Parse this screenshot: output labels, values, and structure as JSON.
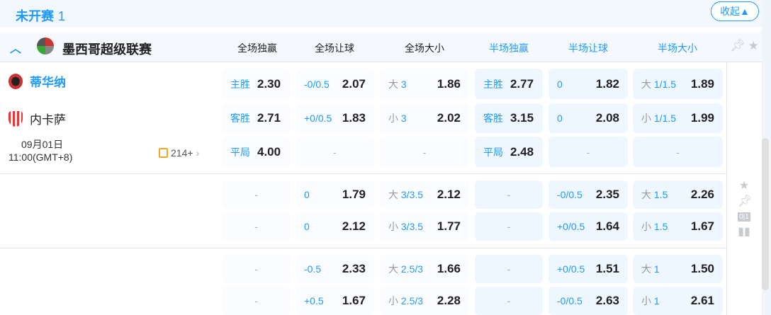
{
  "section": {
    "title": "未开赛",
    "count": "1",
    "collapse_label": "收起▲"
  },
  "league": {
    "name": "墨西哥超级联赛",
    "columns": [
      "全场独赢",
      "全场让球",
      "全场大小",
      "半场独赢",
      "半场让球",
      "半场大小"
    ]
  },
  "match": {
    "home": "蒂华纳",
    "away": "内卡萨",
    "date": "09月01日",
    "time": "11:00(GMT+8)",
    "markets_count": "214+"
  },
  "rows": [
    [
      [
        "主胜",
        "",
        "2.30"
      ],
      [
        "-0/0.5",
        "",
        "2.07"
      ],
      [
        "大",
        "3",
        "1.86"
      ],
      [
        "主胜",
        "",
        "2.77"
      ],
      [
        "0",
        "",
        "1.82"
      ],
      [
        "大",
        "1/1.5",
        "1.89"
      ]
    ],
    [
      [
        "客胜",
        "",
        "2.71"
      ],
      [
        "+0/0.5",
        "",
        "1.83"
      ],
      [
        "小",
        "3",
        "2.02"
      ],
      [
        "客胜",
        "",
        "3.15"
      ],
      [
        "0",
        "",
        "2.08"
      ],
      [
        "小",
        "1/1.5",
        "1.99"
      ]
    ],
    [
      [
        "平局",
        "",
        "4.00"
      ],
      null,
      null,
      [
        "平局",
        "",
        "2.48"
      ],
      null,
      null
    ],
    [
      null,
      [
        "0",
        "",
        "1.79"
      ],
      [
        "大",
        "3/3.5",
        "2.12"
      ],
      null,
      [
        "-0/0.5",
        "",
        "2.35"
      ],
      [
        "大",
        "1.5",
        "2.26"
      ]
    ],
    [
      null,
      [
        "0",
        "",
        "2.12"
      ],
      [
        "小",
        "3/3.5",
        "1.77"
      ],
      null,
      [
        "+0/0.5",
        "",
        "1.64"
      ],
      [
        "小",
        "1.5",
        "1.67"
      ]
    ],
    [
      null,
      [
        "-0.5",
        "",
        "2.33"
      ],
      [
        "大",
        "2.5/3",
        "1.66"
      ],
      null,
      [
        "+0/0.5",
        "",
        "1.51"
      ],
      [
        "大",
        "1",
        "1.50"
      ]
    ],
    [
      null,
      [
        "+0.5",
        "",
        "1.67"
      ],
      [
        "小",
        "2.5/3",
        "2.28"
      ],
      null,
      [
        "-0/0.5",
        "",
        "2.63"
      ],
      [
        "小",
        "1",
        "2.61"
      ]
    ]
  ],
  "dash": "-",
  "colors": {
    "accent": "#1e9bff",
    "halftime_cell": "#eef6ff"
  },
  "icons": [
    "chevron-up-icon",
    "league-logo",
    "pin-icon",
    "star-icon",
    "score-icon",
    "stats-icon",
    "odds-icon",
    "chevron-right-icon"
  ]
}
